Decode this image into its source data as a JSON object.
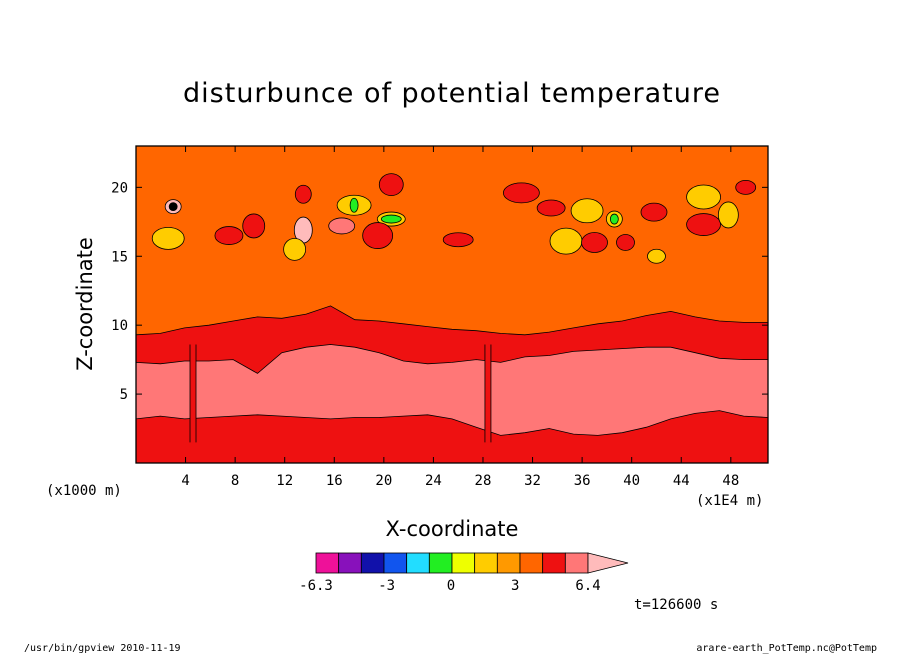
{
  "chart_data": {
    "type": "heatmap",
    "title": "disturbunce of potential temperature",
    "xlabel": "X-coordinate",
    "ylabel": "Z-coordinate",
    "x_unit_label": "(x1E4 m)",
    "y_unit_label": "(x1000 m)",
    "xlim": [
      0,
      51
    ],
    "ylim": [
      0,
      23
    ],
    "x_ticks": [
      4,
      8,
      12,
      16,
      20,
      24,
      28,
      32,
      36,
      40,
      44,
      48
    ],
    "y_ticks": [
      5,
      10,
      15,
      20
    ],
    "levels": [
      -6.3,
      -5.5,
      -4.7,
      -3.9,
      -3.1,
      -2.3,
      -1.5,
      -0.7,
      0.1,
      0.9,
      1.7,
      2.5,
      3.3,
      4.1,
      4.9,
      5.7,
      6.4
    ],
    "colorbar_labels": [
      {
        "value": -6.3,
        "text": "-6.3"
      },
      {
        "value": -3,
        "text": "-3"
      },
      {
        "value": 0,
        "text": "0"
      },
      {
        "value": 3,
        "text": "3"
      },
      {
        "value": 6.4,
        "text": "6.4"
      }
    ],
    "colors": [
      "#ee1199",
      "#8811bb",
      "#1111aa",
      "#1155ee",
      "#22ddff",
      "#22ee22",
      "#eeff00",
      "#ffcc00",
      "#ff9900",
      "#ff6600",
      "#ee1111",
      "#ff7777",
      "#ffbbbb"
    ],
    "bands": {
      "yellow_top_z": [
        9.3,
        9.4,
        9.8,
        10.0,
        10.3,
        10.6,
        10.5,
        10.8,
        11.4,
        10.4,
        10.3,
        10.1,
        9.9,
        9.7,
        9.6,
        9.4,
        9.3,
        9.5,
        9.8,
        10.1,
        10.3,
        10.7,
        11.0,
        10.6,
        10.3,
        10.2,
        10.2
      ],
      "orange_top_z": [
        7.3,
        7.2,
        7.4,
        7.4,
        7.5,
        6.5,
        8.0,
        8.4,
        8.6,
        8.4,
        8.0,
        7.4,
        7.2,
        7.3,
        7.5,
        7.3,
        7.7,
        7.8,
        8.1,
        8.2,
        8.3,
        8.4,
        8.4,
        8.0,
        7.6,
        7.5,
        7.5
      ],
      "orange_bottom_z": [
        3.2,
        3.4,
        3.2,
        3.3,
        3.4,
        3.5,
        3.4,
        3.3,
        3.2,
        3.3,
        3.3,
        3.4,
        3.5,
        3.2,
        2.6,
        2.0,
        2.2,
        2.5,
        2.1,
        2.0,
        2.2,
        2.6,
        3.2,
        3.6,
        3.8,
        3.4,
        3.3
      ],
      "orange_gaps_x": [
        4.6,
        28.4
      ]
    },
    "cells": [
      {
        "x": 3.0,
        "z": 18.6,
        "value": 2.5
      },
      {
        "x": 3.0,
        "z": 18.6,
        "value": 3.3
      },
      {
        "x": 2.6,
        "z": 16.3,
        "value": -1.5
      },
      {
        "x": 13.5,
        "z": 16.9,
        "value": 2.5
      },
      {
        "x": 16.6,
        "z": 17.2,
        "value": 1.7
      },
      {
        "x": 17.6,
        "z": 18.7,
        "value": -1.5
      },
      {
        "x": 17.6,
        "z": 18.7,
        "value": -3.1
      },
      {
        "x": 20.6,
        "z": 17.7,
        "value": -1.5
      },
      {
        "x": 20.6,
        "z": 17.7,
        "value": -3.1
      },
      {
        "x": 12.8,
        "z": 15.5,
        "value": -1.5
      },
      {
        "x": 19.5,
        "z": 16.5,
        "value": 0.9
      },
      {
        "x": 38.6,
        "z": 17.7,
        "value": -1.5
      },
      {
        "x": 38.6,
        "z": 17.7,
        "value": -3.1
      },
      {
        "x": 36.4,
        "z": 18.3,
        "value": -1.5
      },
      {
        "x": 42.0,
        "z": 15.0,
        "value": -1.5
      },
      {
        "x": 41.8,
        "z": 18.2,
        "value": 0.9
      },
      {
        "x": 45.8,
        "z": 17.3,
        "value": 0.9
      },
      {
        "x": 47.8,
        "z": 18.0,
        "value": -1.5
      },
      {
        "x": 33.5,
        "z": 18.5,
        "value": 0.9
      },
      {
        "x": 31.1,
        "z": 19.6,
        "value": 0.9
      },
      {
        "x": 9.5,
        "z": 17.2,
        "value": 0.9
      },
      {
        "x": 26.0,
        "z": 16.2,
        "value": 0.9
      },
      {
        "x": 13.5,
        "z": 19.5,
        "value": 0.9
      },
      {
        "x": 20.6,
        "z": 20.2,
        "value": 0.9
      },
      {
        "x": 34.7,
        "z": 16.1,
        "value": -1.5
      },
      {
        "x": 39.5,
        "z": 16.0,
        "value": 0.9
      },
      {
        "x": 37.0,
        "z": 16.0,
        "value": 0.9
      },
      {
        "x": 45.8,
        "z": 19.3,
        "value": -1.5
      },
      {
        "x": 49.2,
        "z": 20.0,
        "value": 0.9
      },
      {
        "x": 7.5,
        "z": 16.5,
        "value": 0.9
      }
    ]
  },
  "time_label": "t=126600 s",
  "footer_left": "/usr/bin/gpview  2010-11-19",
  "footer_right": "arare-earth_PotTemp.nc@PotTemp"
}
